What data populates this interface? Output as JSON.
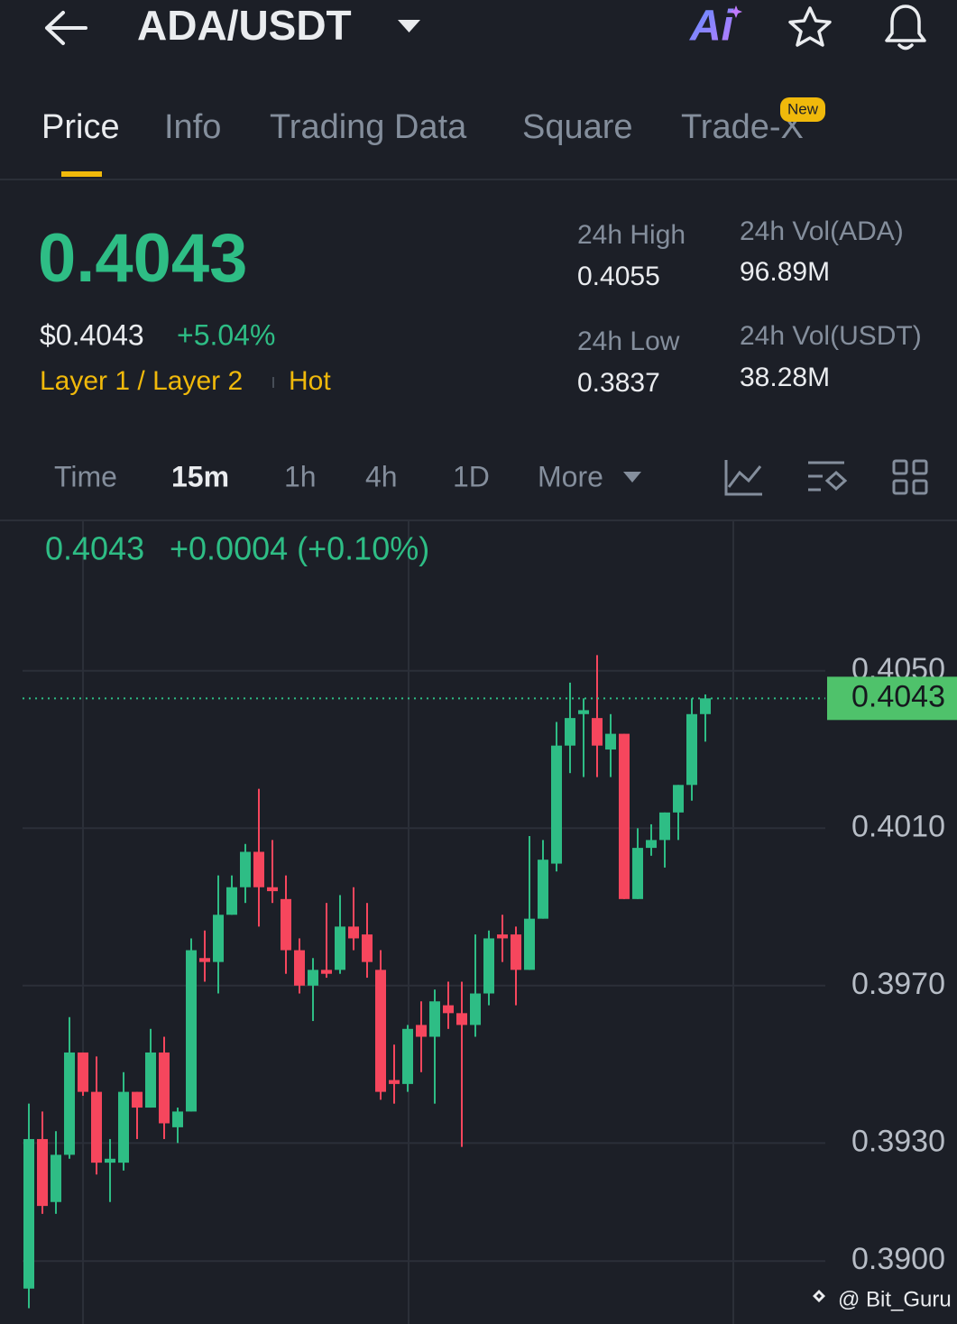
{
  "header": {
    "title": "ADA/USDT",
    "ai": "Ai"
  },
  "tabs": [
    "Price",
    "Info",
    "Trading Data",
    "Square",
    "Trade-X"
  ],
  "new_badge": "New",
  "ticker": {
    "last_price": "0.4043",
    "usd_price": "$0.4043",
    "change": "+5.04%",
    "tags": [
      "Layer 1 / Layer 2",
      "Hot"
    ],
    "stats": [
      {
        "label": "24h High",
        "value": "0.4055"
      },
      {
        "label": "24h Low",
        "value": "0.3837"
      },
      {
        "label": "24h Vol(ADA)",
        "value": "96.89M"
      },
      {
        "label": "24h Vol(USDT)",
        "value": "38.28M"
      }
    ]
  },
  "intervals": [
    "Time",
    "15m",
    "1h",
    "4h",
    "1D",
    "More"
  ],
  "chart_data": {
    "type": "candlestick",
    "legend_price": "0.4043",
    "legend_change": "+0.0004 (+0.10%)",
    "up_color": "#2ebd85",
    "down_color": "#f6465d",
    "grid": true,
    "open": [
      0.3893,
      0.3931,
      0.3915,
      0.3927,
      0.3953,
      0.3943,
      0.3925,
      0.3925,
      0.3943,
      0.3939,
      0.3953,
      0.3934,
      0.3938,
      0.3977,
      0.3976,
      0.3988,
      0.3995,
      0.4004,
      0.3995,
      0.3992,
      0.3979,
      0.397,
      0.3974,
      0.3974,
      0.3985,
      0.3983,
      0.3974,
      0.3946,
      0.3945,
      0.396,
      0.3957,
      0.3965,
      0.3963,
      0.396,
      0.3968,
      0.3983,
      0.3983,
      0.3974,
      0.3987,
      0.4001,
      0.4031,
      0.4039,
      0.4038,
      0.403,
      0.4034,
      0.3992,
      0.4005,
      0.4007,
      0.4014,
      0.4021,
      0.4039
    ],
    "high": [
      0.394,
      0.3938,
      0.3933,
      0.3962,
      0.3953,
      0.3952,
      0.3931,
      0.3948,
      0.3943,
      0.3959,
      0.3957,
      0.3939,
      0.3982,
      0.3984,
      0.3998,
      0.3998,
      0.4006,
      0.402,
      0.4007,
      0.3998,
      0.3982,
      0.3977,
      0.3991,
      0.3993,
      0.3995,
      0.3991,
      0.3979,
      0.3955,
      0.396,
      0.3966,
      0.3969,
      0.3971,
      0.3971,
      0.3983,
      0.3984,
      0.3988,
      0.3985,
      0.4008,
      0.4007,
      0.4037,
      0.4047,
      0.4043,
      0.4054,
      0.4039,
      0.4034,
      0.401,
      0.4011,
      0.4014,
      0.4021,
      0.4043,
      0.4044
    ],
    "low": [
      0.3888,
      0.3912,
      0.3912,
      0.3926,
      0.3942,
      0.3922,
      0.3915,
      0.3923,
      0.3931,
      0.3939,
      0.3931,
      0.393,
      0.3938,
      0.3971,
      0.3968,
      0.3988,
      0.3991,
      0.3985,
      0.3991,
      0.3973,
      0.3968,
      0.3961,
      0.3972,
      0.3973,
      0.3979,
      0.3972,
      0.3941,
      0.394,
      0.3943,
      0.3948,
      0.394,
      0.3959,
      0.3929,
      0.3957,
      0.3965,
      0.3976,
      0.3965,
      0.3974,
      0.3987,
      0.3999,
      0.4024,
      0.4023,
      0.4023,
      0.4023,
      0.3992,
      0.3992,
      0.4003,
      0.4,
      0.4007,
      0.4017,
      0.4032
    ],
    "close": [
      0.3931,
      0.3914,
      0.3927,
      0.3953,
      0.3943,
      0.3925,
      0.3926,
      0.3943,
      0.3939,
      0.3953,
      0.3935,
      0.3938,
      0.3979,
      0.3976,
      0.3988,
      0.3995,
      0.4004,
      0.3995,
      0.3994,
      0.3979,
      0.397,
      0.3974,
      0.3973,
      0.3985,
      0.3982,
      0.3976,
      0.3943,
      0.3945,
      0.3959,
      0.3957,
      0.3966,
      0.3963,
      0.396,
      0.3968,
      0.3982,
      0.3982,
      0.3974,
      0.3987,
      0.4002,
      0.4031,
      0.4038,
      0.404,
      0.4031,
      0.4034,
      0.3992,
      0.4005,
      0.4007,
      0.4014,
      0.4021,
      0.4039,
      0.4043
    ],
    "ylim": [
      0.3884,
      0.4088
    ],
    "yticks": [
      {
        "value": 0.405,
        "label": "0.4050"
      },
      {
        "value": 0.401,
        "label": "0.4010"
      },
      {
        "value": 0.397,
        "label": "0.3970"
      },
      {
        "value": 0.393,
        "label": "0.3930"
      },
      {
        "value": 0.39,
        "label": "0.3900"
      }
    ],
    "current_price": {
      "value": 0.4043,
      "label": "0.4043"
    },
    "watermark": "@ Bit_Guru"
  }
}
